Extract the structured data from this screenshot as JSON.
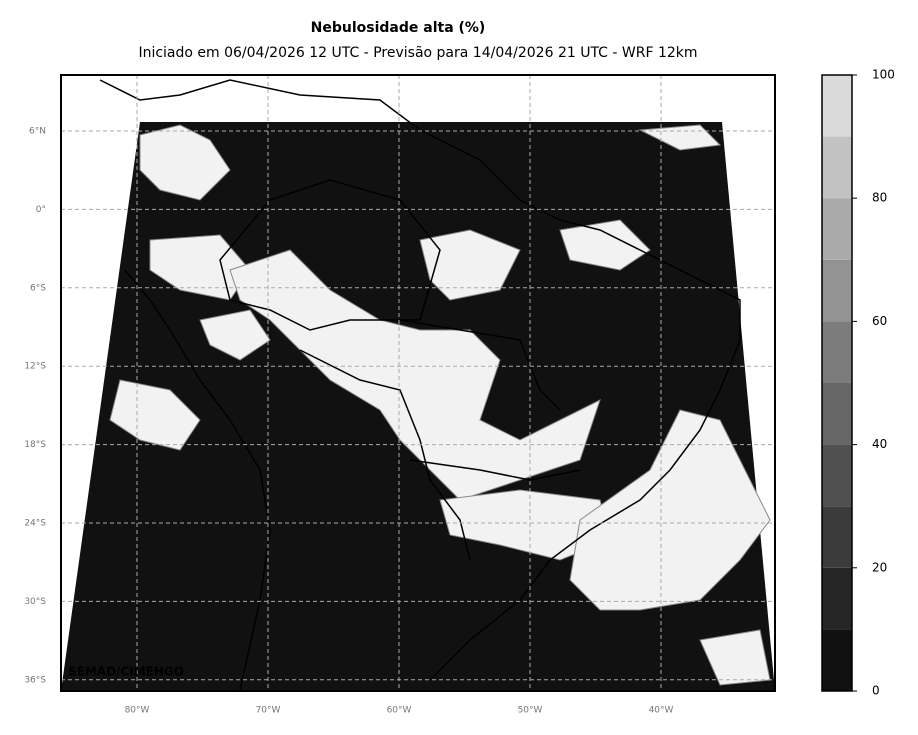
{
  "header": {
    "title": "Nebulosidade alta (%)",
    "subtitle": "Iniciado em 06/04/2026 12 UTC - Previsão para 14/04/2026 21 UTC - WRF 12km"
  },
  "map": {
    "lon_labels": [
      "80°W",
      "70°W",
      "60°W",
      "50°W",
      "40°W"
    ],
    "lat_labels": [
      "6°N",
      "0°",
      "6°S",
      "12°S",
      "18°S",
      "24°S",
      "30°S",
      "36°S"
    ],
    "credit": "SEMAD/CIMEHGO"
  },
  "colorbar": {
    "levels": [
      0,
      10,
      20,
      30,
      40,
      50,
      60,
      70,
      80,
      90,
      100
    ],
    "colors": [
      "#111111",
      "#262626",
      "#3b3b3b",
      "#505050",
      "#666666",
      "#7c7c7c",
      "#939393",
      "#aaaaaa",
      "#c2c2c2",
      "#dadada",
      "#f2f2f2"
    ],
    "ticks": [
      0,
      20,
      40,
      60,
      80,
      100
    ]
  }
}
